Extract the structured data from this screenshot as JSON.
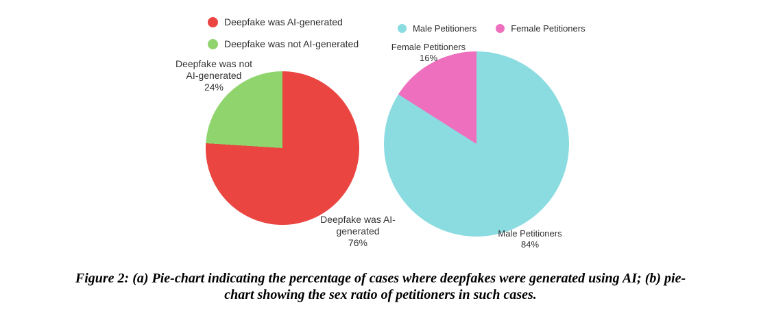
{
  "chart_data": [
    {
      "type": "pie",
      "name": "deepfake-ai-generation",
      "categories": [
        "Deepfake was AI-generated",
        "Deepfake was not AI-generated"
      ],
      "values": [
        76,
        24
      ],
      "colors": [
        "#EA4540",
        "#8FD46C"
      ],
      "legend_position": "top-left-vertical",
      "slice_labels": [
        {
          "text": "Deepfake was AI-generated",
          "pct": "76%"
        },
        {
          "text": "Deepfake was not AI-generated",
          "pct": "24%"
        }
      ]
    },
    {
      "type": "pie",
      "name": "petitioner-sex-ratio",
      "categories": [
        "Male Petitioners",
        "Female Petitioners"
      ],
      "values": [
        84,
        16
      ],
      "colors": [
        "#8BDCE1",
        "#EE6FBE"
      ],
      "legend_position": "top-horizontal",
      "slice_labels": [
        {
          "text": "Male Petitioners",
          "pct": "84%"
        },
        {
          "text": "Female Petitioners",
          "pct": "16%"
        }
      ]
    }
  ],
  "caption": {
    "line1": "Figure 2: (a) Pie-chart indicating the percentage of cases where deepfakes were generated using AI; (b) pie-",
    "line2": "chart showing the sex ratio of petitioners in such cases."
  }
}
